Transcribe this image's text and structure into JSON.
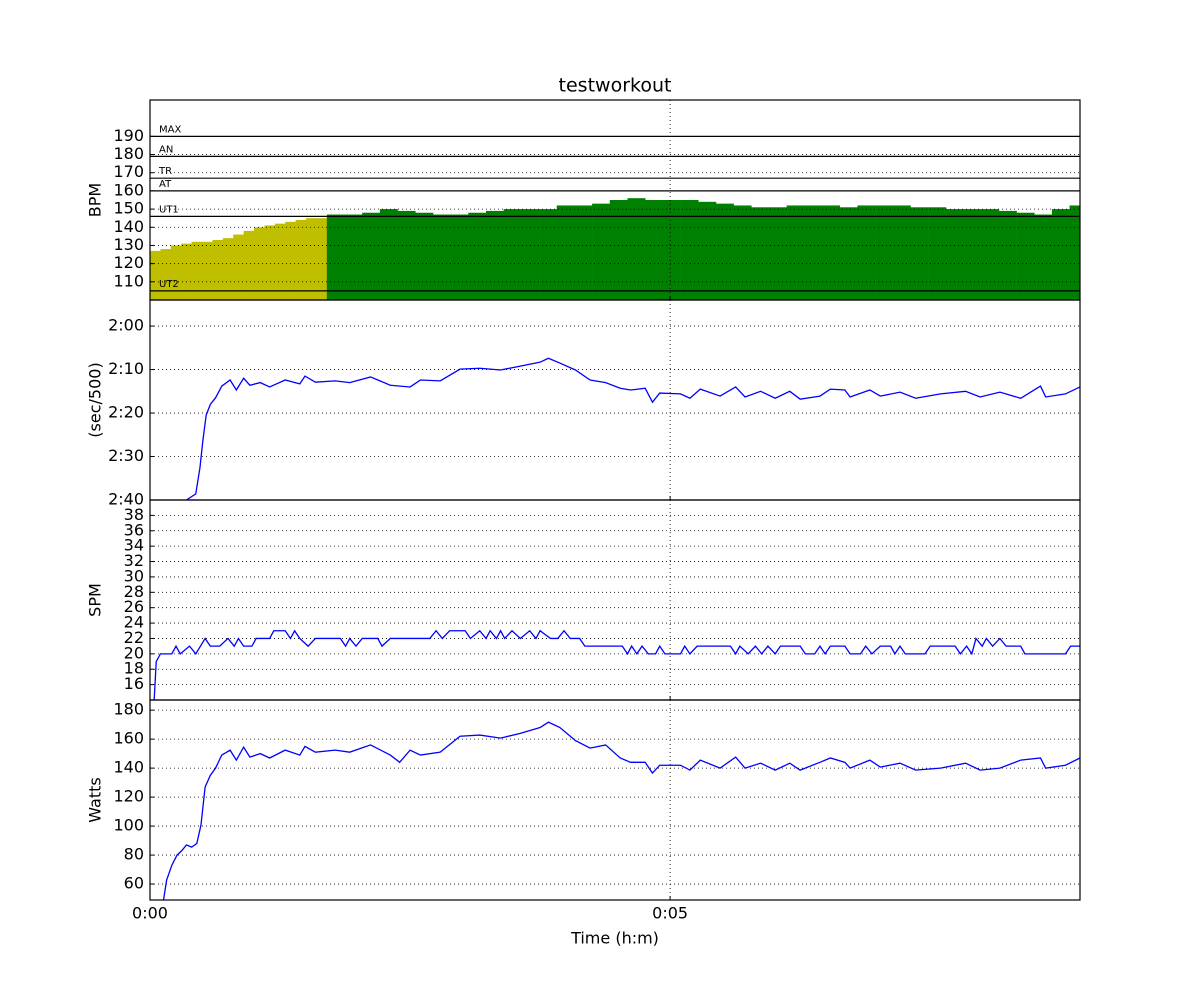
{
  "chart_data": [
    {
      "type": "bar",
      "title": "testworkout",
      "ylabel": "BPM",
      "xlim": [
        0,
        8.94
      ],
      "xticks": [
        {
          "value": 0,
          "label": "0:00"
        },
        {
          "value": 5,
          "label": "0:05"
        }
      ],
      "ylim": [
        100,
        210
      ],
      "yticks": [
        110,
        120,
        130,
        140,
        150,
        160,
        170,
        180,
        190
      ],
      "grid": true,
      "zones": [
        {
          "label": "MAX",
          "value": 190
        },
        {
          "label": "AN",
          "value": 179
        },
        {
          "label": "TR",
          "value": 167
        },
        {
          "label": "AT",
          "value": 160
        },
        {
          "label": "UT1",
          "value": 146
        },
        {
          "label": "UT2",
          "value": 105
        }
      ],
      "series": [
        {
          "color": "#bfbf00",
          "x": [
            0,
            0.1,
            0.2,
            0.3,
            0.4,
            0.5,
            0.6,
            0.7,
            0.8,
            0.9,
            1.0,
            1.1,
            1.2,
            1.3,
            1.4,
            1.5,
            1.6
          ],
          "values": [
            127,
            128,
            130,
            131,
            132,
            132,
            133,
            134,
            136,
            138,
            140,
            141,
            142,
            143,
            144,
            145,
            145
          ]
        },
        {
          "color": "#008000",
          "x": [
            1.7,
            1.87,
            2.04,
            2.21,
            2.38,
            2.55,
            2.72,
            2.89,
            3.06,
            3.23,
            3.4,
            3.57,
            3.74,
            3.91,
            4.08,
            4.25,
            4.42,
            4.59,
            4.76,
            4.93,
            5.1,
            5.27,
            5.44,
            5.61,
            5.78,
            5.95,
            6.12,
            6.29,
            6.46,
            6.63,
            6.8,
            6.97,
            7.14,
            7.31,
            7.48,
            7.65,
            7.82,
            7.99,
            8.16,
            8.33,
            8.5,
            8.67,
            8.84
          ],
          "values": [
            147,
            147,
            148,
            150,
            149,
            148,
            147,
            147,
            148,
            149,
            150,
            150,
            150,
            152,
            152,
            153,
            155,
            156,
            155,
            155,
            155,
            154,
            153,
            152,
            151,
            151,
            152,
            152,
            152,
            151,
            152,
            152,
            152,
            151,
            151,
            150,
            150,
            150,
            149,
            148,
            147,
            150,
            152
          ]
        }
      ]
    },
    {
      "type": "line",
      "ylabel": "(sec/500)",
      "color": "#0000ff",
      "xlim": [
        0,
        8.94
      ],
      "xticks": [
        {
          "value": 0,
          "label": "0:00"
        },
        {
          "value": 5,
          "label": "0:05"
        }
      ],
      "ylim": [
        160,
        114
      ],
      "yticks": [
        {
          "value": 120,
          "label": "2:00"
        },
        {
          "value": 130,
          "label": "2:10"
        },
        {
          "value": 140,
          "label": "2:20"
        },
        {
          "value": 150,
          "label": "2:30"
        },
        {
          "value": 160,
          "label": "2:40"
        }
      ],
      "grid": true,
      "x": [
        0.35,
        0.44,
        0.48,
        0.51,
        0.54,
        0.58,
        0.63,
        0.69,
        0.77,
        0.83,
        0.9,
        0.96,
        1.06,
        1.15,
        1.3,
        1.44,
        1.49,
        1.59,
        1.78,
        1.92,
        2.12,
        2.31,
        2.5,
        2.6,
        2.79,
        2.98,
        3.17,
        3.37,
        3.56,
        3.75,
        3.83,
        3.94,
        4.09,
        4.23,
        4.38,
        4.52,
        4.62,
        4.76,
        4.83,
        4.9,
        5.1,
        5.19,
        5.29,
        5.48,
        5.63,
        5.72,
        5.87,
        6.01,
        6.15,
        6.25,
        6.44,
        6.54,
        6.68,
        6.73,
        6.92,
        7.02,
        7.21,
        7.36,
        7.6,
        7.84,
        7.98,
        8.17,
        8.37,
        8.56,
        8.61,
        8.8,
        8.94
      ],
      "values": [
        160,
        158.6,
        152.6,
        146,
        140.5,
        138,
        136.5,
        133.8,
        132.4,
        134.7,
        132,
        133.6,
        133,
        134,
        132.4,
        133.3,
        131.5,
        132.9,
        132.6,
        133,
        131.7,
        133.6,
        134,
        132.4,
        132.6,
        129.9,
        129.7,
        130.1,
        129.2,
        128.3,
        127.4,
        128.5,
        130.1,
        132.4,
        133,
        134.3,
        134.7,
        134.3,
        137.5,
        135.4,
        135.6,
        136.6,
        134.5,
        136.1,
        134,
        136.3,
        135,
        136.6,
        135,
        136.8,
        136.1,
        134.5,
        134.7,
        136.3,
        134.7,
        136.1,
        135.2,
        136.6,
        135.6,
        135,
        136.3,
        135.2,
        136.6,
        133.8,
        136.3,
        135.6,
        134
      ]
    },
    {
      "type": "line",
      "ylabel": "SPM",
      "color": "#0000ff",
      "xlim": [
        0,
        8.94
      ],
      "xticks": [
        {
          "value": 0,
          "label": "0:00"
        },
        {
          "value": 5,
          "label": "0:05"
        }
      ],
      "ylim": [
        14,
        40
      ],
      "yticks": [
        16,
        18,
        20,
        22,
        24,
        26,
        28,
        30,
        32,
        34,
        36,
        38
      ],
      "grid": true,
      "x": [
        0.04,
        0.06,
        0.1,
        0.21,
        0.25,
        0.29,
        0.38,
        0.44,
        0.53,
        0.58,
        0.67,
        0.75,
        0.81,
        0.85,
        0.9,
        0.98,
        1.02,
        1.15,
        1.19,
        1.3,
        1.35,
        1.39,
        1.44,
        1.52,
        1.59,
        1.83,
        1.88,
        1.92,
        1.98,
        2.04,
        2.19,
        2.23,
        2.31,
        2.69,
        2.75,
        2.81,
        2.88,
        3.03,
        3.08,
        3.17,
        3.23,
        3.27,
        3.33,
        3.37,
        3.41,
        3.48,
        3.56,
        3.65,
        3.71,
        3.75,
        3.85,
        3.92,
        3.98,
        4.04,
        4.13,
        4.18,
        4.54,
        4.59,
        4.63,
        4.68,
        4.73,
        4.79,
        4.86,
        4.9,
        4.95,
        5.1,
        5.14,
        5.19,
        5.26,
        5.58,
        5.63,
        5.67,
        5.75,
        5.82,
        5.88,
        5.94,
        6.01,
        6.06,
        6.25,
        6.3,
        6.39,
        6.44,
        6.49,
        6.54,
        6.68,
        6.73,
        6.83,
        6.88,
        6.94,
        7.02,
        7.12,
        7.16,
        7.21,
        7.26,
        7.45,
        7.5,
        7.74,
        7.79,
        7.85,
        7.9,
        7.94,
        8.0,
        8.04,
        8.1,
        8.17,
        8.23,
        8.37,
        8.41,
        8.8,
        8.85,
        8.94
      ],
      "values": [
        14,
        19,
        20,
        20,
        21,
        20,
        21,
        20,
        22,
        21,
        21,
        22,
        21,
        22,
        21,
        21,
        22,
        22,
        23,
        23,
        22,
        23,
        22,
        21,
        22,
        22,
        21,
        22,
        21,
        22,
        22,
        21,
        22,
        22,
        23,
        22,
        23,
        23,
        22,
        23,
        22,
        23,
        22,
        23,
        22,
        23,
        22,
        23,
        22,
        23,
        22,
        22,
        23,
        22,
        22,
        21,
        21,
        20,
        21,
        20,
        21,
        20,
        20,
        21,
        20,
        20,
        21,
        20,
        21,
        21,
        20,
        21,
        20,
        21,
        20,
        21,
        20,
        21,
        21,
        20,
        20,
        21,
        20,
        21,
        21,
        20,
        20,
        21,
        20,
        21,
        21,
        20,
        21,
        20,
        20,
        21,
        21,
        20,
        21,
        20,
        22,
        21,
        22,
        21,
        22,
        21,
        21,
        20,
        20,
        21,
        21
      ]
    },
    {
      "type": "line",
      "ylabel": "Watts",
      "xlabel": "Time (h:m)",
      "color": "#0000ff",
      "xlim": [
        0,
        8.94
      ],
      "xticks": [
        {
          "value": 0,
          "label": "0:00"
        },
        {
          "value": 5,
          "label": "0:05"
        }
      ],
      "ylim": [
        49,
        187
      ],
      "yticks": [
        60,
        80,
        100,
        120,
        140,
        160,
        180
      ],
      "grid": true,
      "x": [
        0.13,
        0.16,
        0.21,
        0.26,
        0.31,
        0.35,
        0.4,
        0.45,
        0.49,
        0.53,
        0.58,
        0.63,
        0.69,
        0.77,
        0.83,
        0.9,
        0.96,
        1.06,
        1.15,
        1.3,
        1.44,
        1.49,
        1.59,
        1.78,
        1.92,
        2.12,
        2.31,
        2.4,
        2.5,
        2.6,
        2.79,
        2.98,
        3.17,
        3.37,
        3.56,
        3.75,
        3.83,
        3.94,
        4.09,
        4.23,
        4.38,
        4.52,
        4.62,
        4.76,
        4.83,
        4.9,
        5.1,
        5.19,
        5.29,
        5.48,
        5.63,
        5.72,
        5.87,
        6.01,
        6.15,
        6.25,
        6.44,
        6.54,
        6.68,
        6.73,
        6.92,
        7.02,
        7.21,
        7.36,
        7.6,
        7.84,
        7.98,
        8.17,
        8.37,
        8.56,
        8.61,
        8.8,
        8.94
      ],
      "values": [
        49,
        62.8,
        73,
        80,
        83.4,
        87,
        85.5,
        88,
        100.7,
        127,
        135,
        140,
        149,
        152.4,
        145.5,
        154.5,
        147.6,
        150,
        147,
        152.4,
        149,
        155,
        151,
        152.4,
        151,
        156,
        149,
        144,
        152.4,
        149,
        151,
        162,
        162.8,
        160.7,
        164,
        168,
        171.7,
        168,
        159,
        153.8,
        156,
        147,
        144,
        144,
        136.6,
        142,
        142,
        138.6,
        145.5,
        140,
        147.6,
        140,
        143.4,
        138.6,
        143.4,
        138.6,
        144,
        147,
        144,
        140,
        145.5,
        140.7,
        143.4,
        138.6,
        140,
        143.4,
        138.6,
        140,
        145.5,
        147,
        140,
        142,
        147
      ]
    }
  ]
}
